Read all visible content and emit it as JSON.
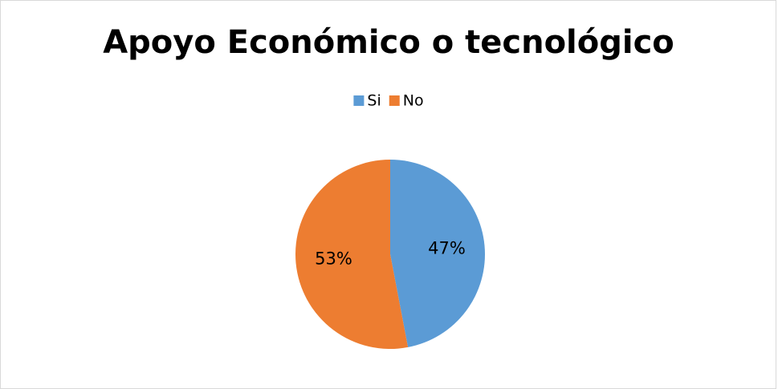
{
  "chart_data": {
    "type": "pie",
    "title": "Apoyo Económico o tecnológico",
    "categories": [
      "Si",
      "No"
    ],
    "values": [
      47,
      53
    ],
    "value_labels": [
      "47%",
      "53%"
    ],
    "colors": [
      "#5b9bd5",
      "#ed7d31"
    ],
    "legend": "top"
  }
}
